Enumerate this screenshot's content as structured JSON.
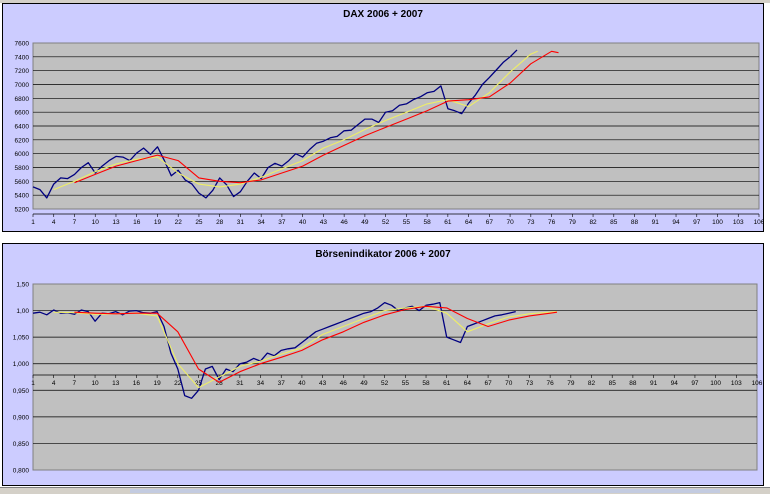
{
  "chart_data": [
    {
      "type": "line",
      "title": "DAX 2006 + 2007",
      "ylim": [
        5200,
        7600
      ],
      "yticks": [
        "5200",
        "5400",
        "5600",
        "5800",
        "6000",
        "6200",
        "6400",
        "6600",
        "6800",
        "7000",
        "7200",
        "7400",
        "7600"
      ],
      "xticks": [
        "1",
        "4",
        "7",
        "10",
        "13",
        "16",
        "19",
        "22",
        "25",
        "28",
        "31",
        "34",
        "37",
        "40",
        "43",
        "46",
        "49",
        "52",
        "55",
        "58",
        "61",
        "64",
        "67",
        "70",
        "73",
        "76",
        "79",
        "82",
        "85",
        "88",
        "91",
        "94",
        "97",
        "100",
        "103",
        "106"
      ],
      "xlim": [
        1,
        106
      ],
      "grid": true,
      "legend": "none",
      "series": [
        {
          "color": "#000080",
          "x": [
            1,
            2,
            3,
            4,
            5,
            6,
            7,
            8,
            9,
            10,
            11,
            12,
            13,
            14,
            15,
            16,
            17,
            18,
            19,
            20,
            21,
            22,
            23,
            24,
            25,
            26,
            27,
            28,
            29,
            30,
            31,
            32,
            33,
            34,
            35,
            36,
            37,
            38,
            39,
            40,
            41,
            42,
            43,
            44,
            45,
            46,
            47,
            48,
            49,
            50,
            51,
            52,
            53,
            54,
            55,
            56,
            57,
            58,
            59,
            60,
            61,
            62,
            63,
            64,
            65,
            66,
            67,
            68,
            69,
            70,
            71
          ],
          "y": [
            5520,
            5480,
            5360,
            5560,
            5650,
            5640,
            5700,
            5800,
            5870,
            5720,
            5820,
            5900,
            5960,
            5950,
            5900,
            6010,
            6080,
            5990,
            6100,
            5900,
            5680,
            5760,
            5620,
            5560,
            5430,
            5360,
            5470,
            5650,
            5550,
            5380,
            5450,
            5600,
            5720,
            5640,
            5800,
            5860,
            5820,
            5900,
            6000,
            5950,
            6060,
            6150,
            6180,
            6230,
            6250,
            6330,
            6340,
            6420,
            6500,
            6500,
            6450,
            6600,
            6620,
            6700,
            6720,
            6780,
            6820,
            6880,
            6900,
            6980,
            6650,
            6620,
            6580,
            6730,
            6850,
            7000,
            7100,
            7210,
            7320,
            7400,
            7500
          ]
        },
        {
          "color": "#eeee66",
          "x": [
            4,
            7,
            10,
            13,
            16,
            19,
            22,
            25,
            28,
            31,
            34,
            37,
            40,
            43,
            46,
            49,
            52,
            55,
            58,
            61,
            64,
            67,
            70,
            73,
            74
          ],
          "y": [
            5480,
            5600,
            5740,
            5850,
            5920,
            5950,
            5720,
            5560,
            5520,
            5560,
            5660,
            5780,
            5900,
            6080,
            6200,
            6350,
            6480,
            6600,
            6720,
            6780,
            6680,
            6880,
            7180,
            7440,
            7480
          ]
        },
        {
          "color": "#ff0000",
          "x": [
            7,
            10,
            13,
            16,
            19,
            22,
            25,
            28,
            31,
            34,
            37,
            40,
            43,
            46,
            49,
            52,
            55,
            58,
            61,
            64,
            67,
            70,
            73,
            76,
            77
          ],
          "y": [
            5580,
            5700,
            5820,
            5900,
            5980,
            5900,
            5650,
            5600,
            5580,
            5620,
            5720,
            5820,
            5980,
            6120,
            6260,
            6380,
            6500,
            6620,
            6760,
            6780,
            6820,
            7020,
            7300,
            7480,
            7460
          ]
        }
      ]
    },
    {
      "type": "line",
      "title": "Börsenindikator 2006 + 2007",
      "ylim": [
        0.8,
        1.15
      ],
      "yticks": [
        "0,800",
        "0,850",
        "0,900",
        "0,950",
        "1,000",
        "1,050",
        "1,00",
        "1,50"
      ],
      "xticks": [
        "1",
        "4",
        "7",
        "10",
        "13",
        "16",
        "19",
        "22",
        "25",
        "28",
        "31",
        "34",
        "37",
        "40",
        "43",
        "46",
        "49",
        "52",
        "55",
        "58",
        "61",
        "64",
        "67",
        "70",
        "73",
        "76",
        "79",
        "82",
        "85",
        "88",
        "91",
        "94",
        "97",
        "100",
        "103",
        "106"
      ],
      "xlim": [
        1,
        106
      ],
      "grid": true,
      "legend": "none",
      "series": [
        {
          "color": "#000080",
          "x": [
            1,
            2,
            3,
            4,
            5,
            6,
            7,
            8,
            9,
            10,
            11,
            12,
            13,
            14,
            15,
            16,
            17,
            18,
            19,
            20,
            21,
            22,
            23,
            24,
            25,
            26,
            27,
            28,
            29,
            30,
            31,
            32,
            33,
            34,
            35,
            36,
            37,
            38,
            39,
            40,
            41,
            42,
            43,
            44,
            45,
            46,
            47,
            48,
            49,
            50,
            51,
            52,
            53,
            54,
            55,
            56,
            57,
            58,
            59,
            60,
            61,
            62,
            63,
            64,
            65,
            66,
            67,
            68,
            69,
            70,
            71
          ],
          "y": [
            1.095,
            1.097,
            1.092,
            1.101,
            1.095,
            1.096,
            1.093,
            1.101,
            1.098,
            1.08,
            1.095,
            1.094,
            1.098,
            1.092,
            1.099,
            1.1,
            1.096,
            1.095,
            1.098,
            1.07,
            1.02,
            0.99,
            0.94,
            0.935,
            0.95,
            0.99,
            0.995,
            0.97,
            0.99,
            0.985,
            1.0,
            1.003,
            1.01,
            1.005,
            1.02,
            1.015,
            1.025,
            1.028,
            1.03,
            1.04,
            1.05,
            1.06,
            1.065,
            1.07,
            1.075,
            1.08,
            1.085,
            1.09,
            1.095,
            1.098,
            1.105,
            1.115,
            1.11,
            1.1,
            1.105,
            1.108,
            1.1,
            1.11,
            1.112,
            1.115,
            1.05,
            1.045,
            1.04,
            1.07,
            1.075,
            1.08,
            1.085,
            1.09,
            1.092,
            1.095,
            1.098
          ]
        },
        {
          "color": "#eeee66",
          "x": [
            4,
            7,
            10,
            13,
            16,
            19,
            22,
            25,
            28,
            31,
            34,
            37,
            40,
            43,
            46,
            49,
            52,
            55,
            58,
            61,
            64,
            67,
            70,
            73,
            76,
            77
          ],
          "y": [
            1.097,
            1.096,
            1.093,
            1.094,
            1.095,
            1.09,
            1.0,
            0.955,
            0.975,
            0.995,
            1.005,
            1.018,
            1.03,
            1.055,
            1.07,
            1.085,
            1.1,
            1.105,
            1.108,
            1.095,
            1.06,
            1.075,
            1.088,
            1.094,
            1.097,
            1.098
          ]
        },
        {
          "color": "#ff0000",
          "x": [
            7,
            10,
            13,
            16,
            19,
            22,
            25,
            28,
            31,
            34,
            37,
            40,
            43,
            46,
            49,
            52,
            55,
            58,
            61,
            64,
            67,
            70,
            73,
            76,
            77
          ],
          "y": [
            1.097,
            1.095,
            1.094,
            1.095,
            1.095,
            1.06,
            0.99,
            0.965,
            0.985,
            1.0,
            1.012,
            1.025,
            1.045,
            1.06,
            1.078,
            1.092,
            1.102,
            1.108,
            1.105,
            1.085,
            1.07,
            1.082,
            1.09,
            1.095,
            1.097
          ]
        }
      ]
    }
  ]
}
